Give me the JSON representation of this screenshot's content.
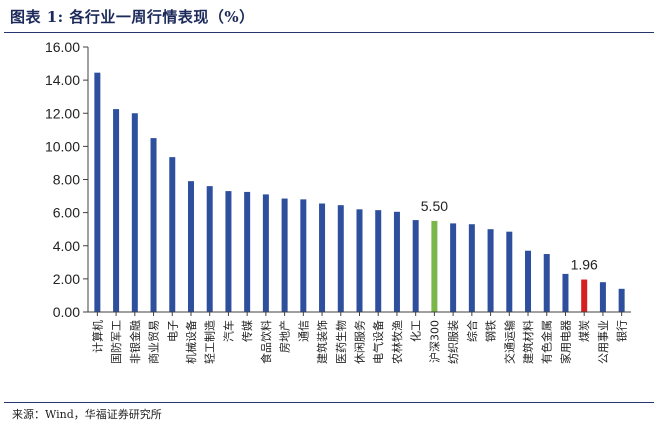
{
  "header": {
    "title": "图表 1:  各行业一周行情表现（%）"
  },
  "footer": {
    "source": "来源：Wind，华福证券研究所"
  },
  "colors": {
    "default": "#2e4f9e",
    "benchmark": "#7ab648",
    "highlight": "#d62020",
    "axis": "#404040"
  },
  "chart_data": {
    "type": "bar",
    "title": "各行业一周行情表现（%）",
    "xlabel": "",
    "ylabel": "",
    "ylim": [
      0,
      16
    ],
    "yticks": [
      "0.00",
      "2.00",
      "4.00",
      "6.00",
      "8.00",
      "10.00",
      "12.00",
      "14.00",
      "16.00"
    ],
    "grid": false,
    "categories": [
      "计算机",
      "国防军工",
      "非银金融",
      "商业贸易",
      "电子",
      "机械设备",
      "轻工制造",
      "汽车",
      "传媒",
      "食品饮料",
      "房地产",
      "通信",
      "建筑装饰",
      "医药生物",
      "休闲服务",
      "电气设备",
      "农林牧渔",
      "化工",
      "沪深300",
      "纺织服装",
      "综合",
      "钢铁",
      "交通运输",
      "建筑材料",
      "有色金属",
      "家用电器",
      "煤炭",
      "公用事业",
      "银行"
    ],
    "values": [
      14.45,
      12.25,
      12.0,
      10.5,
      9.35,
      7.9,
      7.6,
      7.3,
      7.25,
      7.1,
      6.85,
      6.8,
      6.55,
      6.45,
      6.2,
      6.15,
      6.05,
      5.55,
      5.5,
      5.35,
      5.3,
      5.0,
      4.85,
      3.7,
      3.5,
      2.3,
      1.96,
      1.8,
      1.4
    ],
    "highlight": {
      "benchmark_index": 18,
      "highlight_index": 26
    },
    "data_labels": [
      {
        "index": 18,
        "text": "5.50"
      },
      {
        "index": 26,
        "text": "1.96"
      }
    ]
  }
}
